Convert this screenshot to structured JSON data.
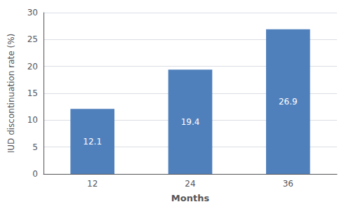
{
  "chart_data": {
    "type": "bar",
    "categories": [
      "12",
      "24",
      "36"
    ],
    "values": [
      12.1,
      19.4,
      26.9
    ],
    "color": "#5080bc",
    "xlabel": "Months",
    "ylabel": "IUD discontinuation rate (%)",
    "ylim": [
      0,
      30
    ],
    "yticks": [
      0,
      5,
      10,
      15,
      20,
      25,
      30
    ],
    "grid": true,
    "data_labels": true
  }
}
